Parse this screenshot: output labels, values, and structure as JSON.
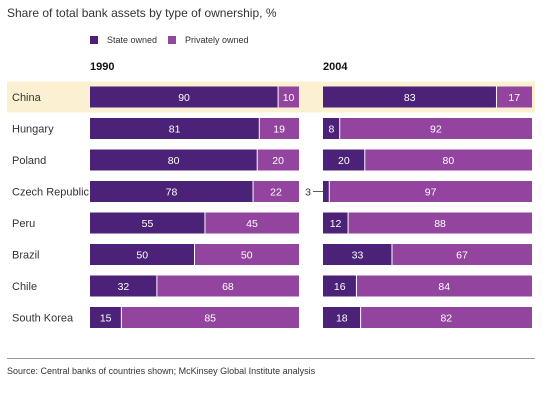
{
  "chart_data": {
    "type": "bar",
    "stacked": true,
    "orientation": "horizontal",
    "title": "Share of total bank assets by type of ownership, %",
    "categories": [
      "China",
      "Hungary",
      "Poland",
      "Czech Republic",
      "Peru",
      "Brazil",
      "Chile",
      "South Korea"
    ],
    "highlight_category": "China",
    "legend": {
      "position": "top-left"
    },
    "panels": [
      {
        "label": "1990",
        "series": [
          {
            "name": "State owned",
            "values": [
              90,
              81,
              80,
              78,
              55,
              50,
              32,
              15
            ]
          },
          {
            "name": "Privately owned",
            "values": [
              10,
              19,
              20,
              22,
              45,
              50,
              68,
              85
            ]
          }
        ]
      },
      {
        "label": "2004",
        "series": [
          {
            "name": "State owned",
            "values": [
              83,
              8,
              20,
              3,
              12,
              33,
              16,
              18
            ]
          },
          {
            "name": "Privately owned",
            "values": [
              17,
              92,
              80,
              97,
              88,
              67,
              84,
              82
            ]
          }
        ]
      }
    ],
    "xlim": [
      0,
      100
    ],
    "grid": false,
    "colors": {
      "State owned": "#4b2277",
      "Privately owned": "#93449f",
      "highlight_band": "#fbf0d2"
    },
    "source": "Source: Central banks of countries shown; McKinsey Global Institute analysis"
  }
}
